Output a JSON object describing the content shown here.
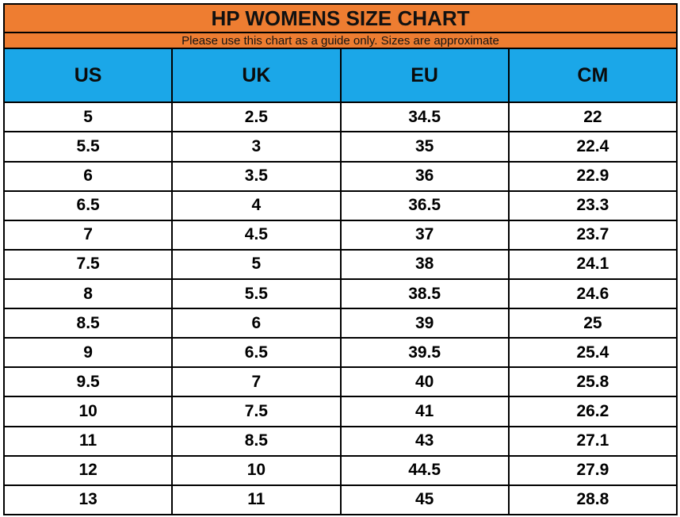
{
  "chart_data": {
    "type": "table",
    "title": "HP WOMENS SIZE CHART",
    "subtitle": "Please use this chart as a guide only. Sizes are approximate",
    "columns": [
      "US",
      "UK",
      "EU",
      "CM"
    ],
    "rows": [
      [
        "5",
        "2.5",
        "34.5",
        "22"
      ],
      [
        "5.5",
        "3",
        "35",
        "22.4"
      ],
      [
        "6",
        "3.5",
        "36",
        "22.9"
      ],
      [
        "6.5",
        "4",
        "36.5",
        "23.3"
      ],
      [
        "7",
        "4.5",
        "37",
        "23.7"
      ],
      [
        "7.5",
        "5",
        "38",
        "24.1"
      ],
      [
        "8",
        "5.5",
        "38.5",
        "24.6"
      ],
      [
        "8.5",
        "6",
        "39",
        "25"
      ],
      [
        "9",
        "6.5",
        "39.5",
        "25.4"
      ],
      [
        "9.5",
        "7",
        "40",
        "25.8"
      ],
      [
        "10",
        "7.5",
        "41",
        "26.2"
      ],
      [
        "11",
        "8.5",
        "43",
        "27.1"
      ],
      [
        "12",
        "10",
        "44.5",
        "27.9"
      ],
      [
        "13",
        "11",
        "45",
        "28.8"
      ]
    ],
    "colors": {
      "title_band": "#EE7D31",
      "header_band": "#1BA7E8",
      "grid_border": "#000000",
      "row_background": "#ffffff",
      "text": "#000000"
    },
    "layout": {
      "grid": "on",
      "header_position": "top"
    }
  }
}
